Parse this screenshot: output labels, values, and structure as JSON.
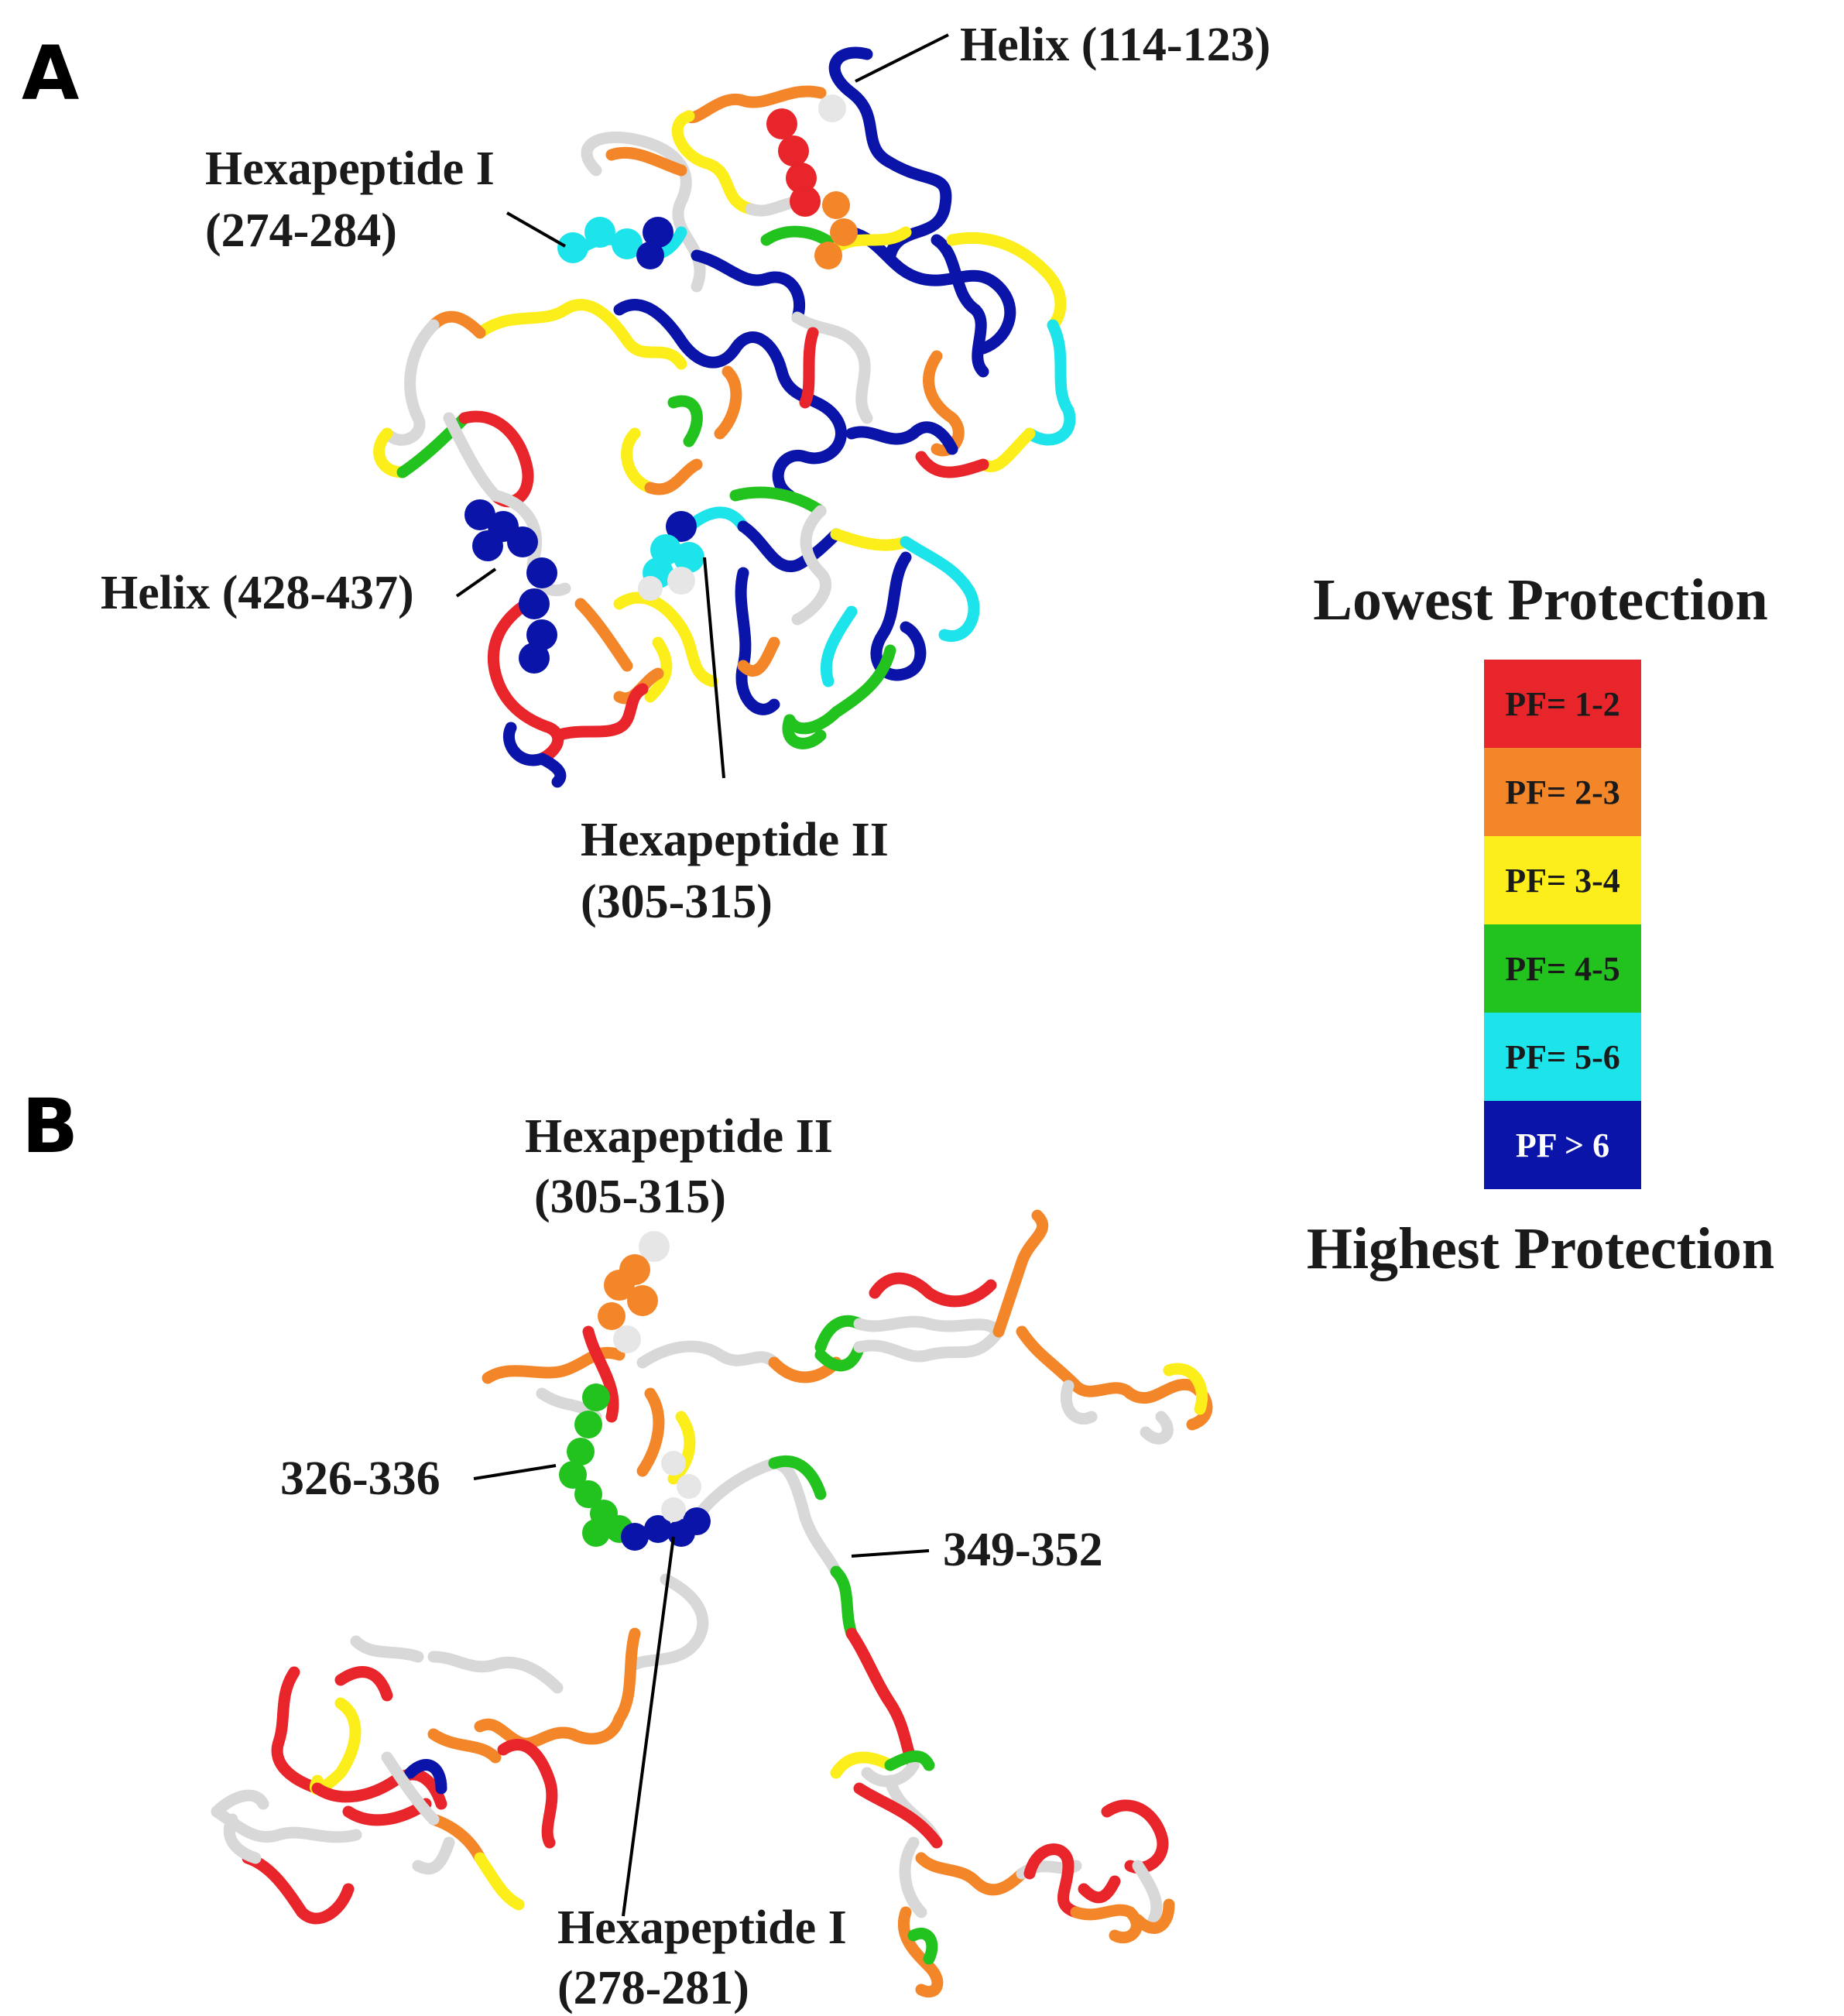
{
  "panels": {
    "a": {
      "letter": "A",
      "labels": {
        "helix_114": "Helix (114-123)",
        "hexa1_name": "Hexapeptide I",
        "hexa1_range": "(274-284)",
        "helix_428": "Helix (428-437)",
        "hexa2_name": "Hexapeptide II",
        "hexa2_range": "(305-315)"
      }
    },
    "b": {
      "letter": "B",
      "labels": {
        "hexa2_name": "Hexapeptide II",
        "hexa2_range": "(305-315)",
        "seg_326": "326-336",
        "seg_349": "349-352",
        "hexa1_name": "Hexapeptide I",
        "hexa1_range": "(278-281)"
      }
    }
  },
  "legend": {
    "top_label": "Lowest Protection",
    "bottom_label": "Highest Protection",
    "items": [
      {
        "label": "PF= 1-2",
        "color": "#e8252a",
        "text_color": "#1a1a1a"
      },
      {
        "label": "PF= 2-3",
        "color": "#f4862a",
        "text_color": "#1a1a1a"
      },
      {
        "label": "PF= 3-4",
        "color": "#fbee1a",
        "text_color": "#1a1a1a"
      },
      {
        "label": "PF= 4-5",
        "color": "#22c31e",
        "text_color": "#1a1a1a"
      },
      {
        "label": "PF= 5-6",
        "color": "#1de3ea",
        "text_color": "#1a1a1a"
      },
      {
        "label": "PF > 6",
        "color": "#0a14a8",
        "text_color": "#ffffff"
      }
    ]
  }
}
